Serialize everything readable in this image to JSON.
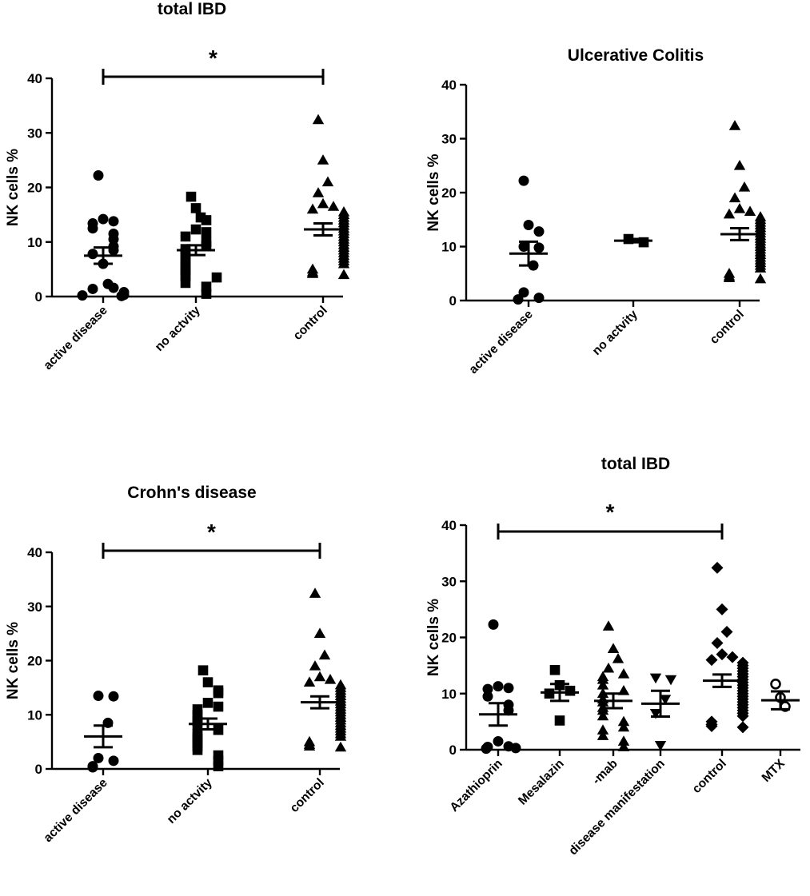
{
  "chart_data": [
    {
      "type": "scatter",
      "title": "total IBD",
      "ylabel": "NK cells %",
      "ylim": [
        0,
        40
      ],
      "yticks": [
        0,
        10,
        20,
        30,
        40
      ],
      "categories": [
        "active disease",
        "no actvity",
        "control"
      ],
      "series": [
        {
          "name": "active disease",
          "marker": "circle",
          "mean": 7.5,
          "sem": 1.5,
          "values": [
            22.2,
            14.2,
            13.8,
            13.4,
            12.5,
            11.5,
            10.5,
            9.2,
            8.5,
            7.8,
            6.0,
            2.3,
            1.6,
            1.4,
            0.8,
            0.3,
            0.2,
            0.1
          ]
        },
        {
          "name": "no actvity",
          "marker": "square",
          "mean": 8.5,
          "sem": 0.9,
          "values": [
            18.3,
            16.2,
            14.5,
            14.0,
            12.3,
            11.8,
            11.0,
            10.0,
            9.3,
            8.7,
            8.0,
            7.5,
            6.8,
            6.0,
            5.5,
            4.8,
            4.2,
            3.8,
            3.5,
            2.5,
            1.8,
            0.5
          ]
        },
        {
          "name": "control",
          "marker": "triangle-up",
          "mean": 12.3,
          "sem": 1.1,
          "values": [
            32.4,
            25.0,
            21.0,
            19.0,
            17.0,
            16.5,
            16.0,
            15.5,
            15.0,
            14.5,
            14.0,
            13.5,
            13.0,
            12.5,
            12.0,
            11.5,
            11.0,
            10.5,
            10.0,
            9.5,
            9.0,
            8.5,
            8.0,
            7.5,
            7.0,
            6.5,
            6.0,
            5.0,
            4.5,
            4.2,
            4.0
          ]
        }
      ],
      "significance": [
        {
          "from": "active disease",
          "to": "control",
          "label": "*"
        }
      ]
    },
    {
      "type": "scatter",
      "title": "Ulcerative Colitis",
      "ylabel": "NK cells %",
      "ylim": [
        0,
        40
      ],
      "yticks": [
        0,
        10,
        20,
        30,
        40
      ],
      "categories": [
        "active disease",
        "no actvity",
        "control"
      ],
      "series": [
        {
          "name": "active disease",
          "marker": "circle",
          "mean": 8.7,
          "sem": 2.2,
          "values": [
            22.2,
            14.0,
            12.8,
            10.0,
            9.8,
            6.5,
            1.5,
            0.5,
            0.2
          ]
        },
        {
          "name": "no actvity",
          "marker": "square",
          "mean": 11.1,
          "sem": 0.3,
          "values": [
            11.4,
            10.8
          ]
        },
        {
          "name": "control",
          "marker": "triangle-up",
          "mean": 12.3,
          "sem": 1.1,
          "values": [
            32.4,
            25.0,
            21.0,
            19.0,
            17.0,
            16.5,
            16.0,
            15.5,
            15.0,
            14.5,
            14.0,
            13.5,
            13.0,
            12.5,
            12.0,
            11.5,
            11.0,
            10.5,
            10.0,
            9.5,
            9.0,
            8.5,
            8.0,
            7.5,
            7.0,
            6.5,
            6.0,
            5.0,
            4.5,
            4.2,
            4.0
          ]
        }
      ],
      "significance": []
    },
    {
      "type": "scatter",
      "title": "Crohn's disease",
      "ylabel": "NK cells %",
      "ylim": [
        0,
        40
      ],
      "yticks": [
        0,
        10,
        20,
        30,
        40
      ],
      "categories": [
        "active disease",
        "no actvity",
        "control"
      ],
      "series": [
        {
          "name": "active disease",
          "marker": "circle",
          "mean": 6.0,
          "sem": 2.0,
          "values": [
            13.5,
            13.4,
            8.5,
            2.0,
            1.5,
            0.5,
            0.3
          ]
        },
        {
          "name": "no actvity",
          "marker": "square",
          "mean": 8.3,
          "sem": 1.0,
          "values": [
            18.2,
            16.0,
            14.5,
            14.0,
            12.2,
            11.5,
            11.0,
            10.0,
            9.5,
            8.8,
            8.0,
            7.2,
            6.5,
            6.0,
            5.5,
            4.8,
            4.2,
            3.5,
            2.5,
            1.5,
            0.5
          ]
        },
        {
          "name": "control",
          "marker": "triangle-up",
          "mean": 12.3,
          "sem": 1.1,
          "values": [
            32.4,
            25.0,
            21.0,
            19.0,
            17.0,
            16.5,
            16.0,
            15.5,
            15.0,
            14.5,
            14.0,
            13.5,
            13.0,
            12.5,
            12.0,
            11.5,
            11.0,
            10.5,
            10.0,
            9.5,
            9.0,
            8.5,
            8.0,
            7.5,
            7.0,
            6.5,
            6.0,
            5.0,
            4.5,
            4.2,
            4.0
          ]
        }
      ],
      "significance": [
        {
          "from": "active disease",
          "to": "control",
          "label": "*"
        }
      ]
    },
    {
      "type": "scatter",
      "title": "total IBD",
      "ylabel": "NK cells %",
      "ylim": [
        0,
        40
      ],
      "yticks": [
        0,
        10,
        20,
        30,
        40
      ],
      "categories": [
        "Azathioprin",
        "Mesalazin",
        "-mab",
        "disease manifestation",
        "control",
        "MTX"
      ],
      "series": [
        {
          "name": "Azathioprin",
          "marker": "circle",
          "mean": 6.3,
          "sem": 2.0,
          "values": [
            22.3,
            11.3,
            11.0,
            10.8,
            9.5,
            8.0,
            7.0,
            1.5,
            0.6,
            0.5,
            0.3,
            0.2
          ]
        },
        {
          "name": "Mesalazin",
          "marker": "square",
          "mean": 10.2,
          "sem": 1.5,
          "values": [
            14.2,
            11.5,
            10.5,
            10.0,
            5.2
          ]
        },
        {
          "name": "-mab",
          "marker": "triangle-up",
          "mean": 8.7,
          "sem": 1.3,
          "values": [
            22.0,
            18.0,
            16.2,
            14.5,
            13.5,
            13.0,
            12.5,
            11.5,
            10.5,
            10.0,
            9.0,
            8.5,
            7.5,
            7.0,
            6.0,
            5.0,
            4.0,
            3.5,
            2.5,
            1.5,
            0.5
          ]
        },
        {
          "name": "disease manifestation",
          "marker": "triangle-down",
          "mean": 8.2,
          "sem": 2.3,
          "values": [
            12.8,
            12.5,
            9.0,
            6.5,
            0.8
          ]
        },
        {
          "name": "control",
          "marker": "diamond",
          "mean": 12.3,
          "sem": 1.1,
          "values": [
            32.4,
            25.0,
            21.0,
            19.0,
            17.0,
            16.5,
            16.0,
            15.5,
            15.0,
            14.5,
            14.0,
            13.5,
            13.0,
            12.5,
            12.0,
            11.5,
            11.0,
            10.5,
            10.0,
            9.5,
            9.0,
            8.5,
            8.0,
            7.5,
            7.0,
            6.5,
            6.0,
            5.0,
            4.5,
            4.2,
            4.0
          ]
        },
        {
          "name": "MTX",
          "marker": "open-circle",
          "mean": 8.8,
          "sem": 1.6,
          "values": [
            11.7,
            9.3,
            7.7
          ]
        }
      ],
      "significance": [
        {
          "from": "Azathioprin",
          "to": "control",
          "label": "*"
        }
      ]
    }
  ]
}
